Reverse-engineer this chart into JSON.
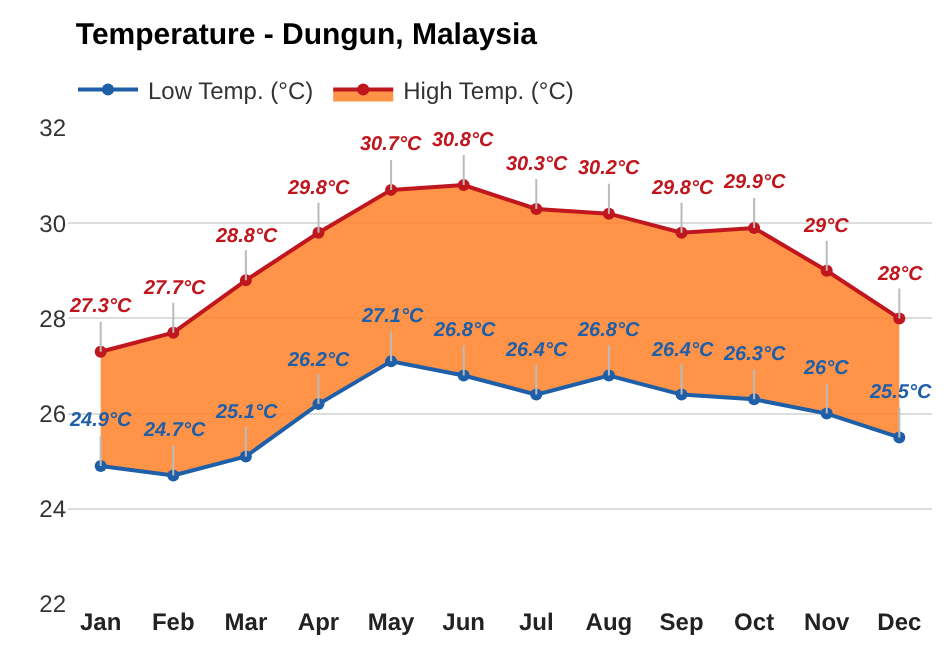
{
  "chart_data": {
    "type": "line",
    "title": "Temperature - Dungun, Malaysia",
    "categories": [
      "Jan",
      "Feb",
      "Mar",
      "Apr",
      "May",
      "Jun",
      "Jul",
      "Aug",
      "Sep",
      "Oct",
      "Nov",
      "Dec"
    ],
    "series": [
      {
        "name": "Low Temp. (°C)",
        "color": "#1f5fa8",
        "values": [
          24.9,
          24.7,
          25.1,
          26.2,
          27.1,
          26.8,
          26.4,
          26.8,
          26.4,
          26.3,
          26,
          25.5
        ],
        "value_labels": [
          "24.9°C",
          "24.7°C",
          "25.1°C",
          "26.2°C",
          "27.1°C",
          "26.8°C",
          "26.4°C",
          "26.8°C",
          "26.4°C",
          "26.3°C",
          "26°C",
          "25.5°C"
        ]
      },
      {
        "name": "High Temp. (°C)",
        "type": "area",
        "color": "#c0161e",
        "values": [
          27.3,
          27.7,
          28.8,
          29.8,
          30.7,
          30.8,
          30.3,
          30.2,
          29.8,
          29.9,
          29,
          28
        ],
        "value_labels": [
          "27.3°C",
          "27.7°C",
          "28.8°C",
          "29.8°C",
          "30.7°C",
          "30.8°C",
          "30.3°C",
          "30.2°C",
          "29.8°C",
          "29.9°C",
          "29°C",
          "28°C"
        ]
      }
    ],
    "ylim": [
      22,
      32
    ],
    "yticks": [
      22,
      24,
      26,
      28,
      30,
      32
    ],
    "grid": "y",
    "legend": "top left",
    "marker": "circle",
    "line_style": "solid"
  }
}
